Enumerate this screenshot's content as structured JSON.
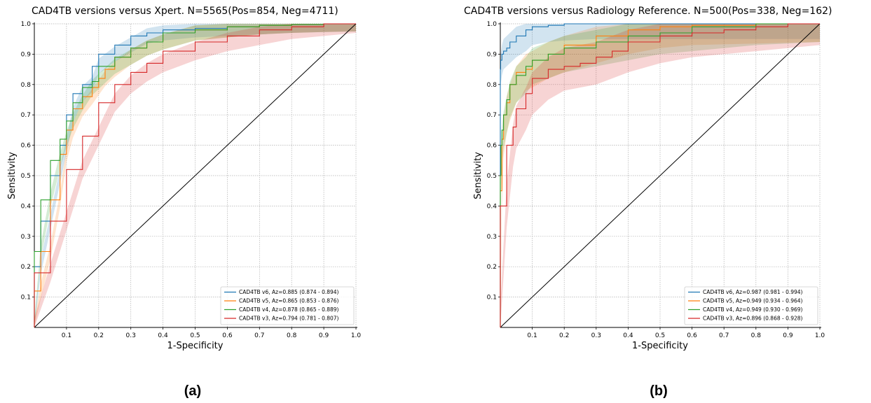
{
  "chart_data": [
    {
      "type": "line",
      "panel_label": "(a)",
      "title": "CAD4TB versions versus Xpert.  N=5565(Pos=854, Neg=4711)",
      "xlabel": "1-Specificity",
      "ylabel": "Sensitivity",
      "xlim": [
        0,
        1.0
      ],
      "ylim": [
        0,
        1.0
      ],
      "xticks": [
        "0.1",
        "0.2",
        "0.3",
        "0.4",
        "0.5",
        "0.6",
        "0.7",
        "0.8",
        "0.9",
        "1.0"
      ],
      "yticks": [
        "0.1",
        "0.2",
        "0.3",
        "0.4",
        "0.5",
        "0.6",
        "0.7",
        "0.8",
        "0.9",
        "1.0"
      ],
      "grid": true,
      "legend_position": "bottom-right",
      "diagonal": true,
      "series": [
        {
          "name": "CAD4TB v6, Az=0.885 (0.874 - 0.894)",
          "color": "#1f77b4",
          "band": 0.025,
          "x": [
            0,
            0.02,
            0.05,
            0.08,
            0.1,
            0.12,
            0.15,
            0.18,
            0.2,
            0.25,
            0.3,
            0.35,
            0.4,
            0.5,
            0.6,
            0.7,
            0.8,
            0.9,
            1.0
          ],
          "y": [
            0,
            0.2,
            0.35,
            0.5,
            0.6,
            0.7,
            0.77,
            0.8,
            0.86,
            0.9,
            0.93,
            0.96,
            0.97,
            0.98,
            0.985,
            0.99,
            0.995,
            0.998,
            1.0
          ]
        },
        {
          "name": "CAD4TB v5, Az=0.865 (0.853 - 0.876)",
          "color": "#ff7f0e",
          "band": 0.025,
          "x": [
            0,
            0.02,
            0.05,
            0.08,
            0.1,
            0.12,
            0.15,
            0.18,
            0.2,
            0.22,
            0.25,
            0.3,
            0.35,
            0.4,
            0.5,
            0.6,
            0.7,
            0.8,
            0.9,
            1.0
          ],
          "y": [
            0,
            0.12,
            0.25,
            0.42,
            0.57,
            0.65,
            0.72,
            0.76,
            0.79,
            0.82,
            0.85,
            0.89,
            0.92,
            0.94,
            0.97,
            0.98,
            0.99,
            0.995,
            0.998,
            1.0
          ]
        },
        {
          "name": "CAD4TB v4, Az=0.878 (0.865 - 0.889)",
          "color": "#2ca02c",
          "band": 0.025,
          "x": [
            0,
            0.02,
            0.05,
            0.08,
            0.1,
            0.12,
            0.15,
            0.18,
            0.2,
            0.25,
            0.3,
            0.35,
            0.4,
            0.5,
            0.6,
            0.7,
            0.8,
            0.9,
            1.0
          ],
          "y": [
            0,
            0.25,
            0.42,
            0.55,
            0.62,
            0.68,
            0.74,
            0.79,
            0.81,
            0.86,
            0.89,
            0.92,
            0.94,
            0.97,
            0.98,
            0.99,
            0.995,
            0.998,
            1.0
          ]
        },
        {
          "name": "CAD4TB v3, Az=0.794 (0.781 - 0.807)",
          "color": "#d62728",
          "band": 0.03,
          "x": [
            0,
            0.05,
            0.1,
            0.15,
            0.2,
            0.25,
            0.3,
            0.35,
            0.4,
            0.5,
            0.6,
            0.7,
            0.8,
            0.9,
            1.0
          ],
          "y": [
            0,
            0.18,
            0.35,
            0.52,
            0.63,
            0.74,
            0.8,
            0.84,
            0.87,
            0.91,
            0.94,
            0.96,
            0.98,
            0.99,
            1.0
          ]
        }
      ]
    },
    {
      "type": "line",
      "panel_label": "(b)",
      "title": "CAD4TB versions versus Radiology Reference.  N=500(Pos=338, Neg=162)",
      "xlabel": "1-Specificity",
      "ylabel": "Sensitivity",
      "xlim": [
        0,
        1.0
      ],
      "ylim": [
        0,
        1.0
      ],
      "xticks": [
        "0.1",
        "0.2",
        "0.3",
        "0.4",
        "0.5",
        "0.6",
        "0.7",
        "0.8",
        "0.9",
        "1.0"
      ],
      "yticks": [
        "0.1",
        "0.2",
        "0.3",
        "0.4",
        "0.5",
        "0.6",
        "0.7",
        "0.8",
        "0.9",
        "1.0"
      ],
      "grid": true,
      "legend_position": "bottom-right",
      "diagonal": true,
      "series": [
        {
          "name": "CAD4TB v6, Az=0.987 (0.981 - 0.994)",
          "color": "#1f77b4",
          "band": 0.05,
          "x": [
            0,
            0.001,
            0.005,
            0.01,
            0.02,
            0.03,
            0.05,
            0.08,
            0.1,
            0.15,
            0.2,
            0.3,
            0.4,
            0.6,
            0.8,
            1.0
          ],
          "y": [
            0,
            0.85,
            0.88,
            0.9,
            0.91,
            0.92,
            0.94,
            0.96,
            0.98,
            0.99,
            0.995,
            1.0,
            1.0,
            1.0,
            1.0,
            1.0
          ]
        },
        {
          "name": "CAD4TB v5, Az=0.949 (0.934 - 0.964)",
          "color": "#ff7f0e",
          "band": 0.06,
          "x": [
            0,
            0.005,
            0.01,
            0.02,
            0.03,
            0.05,
            0.08,
            0.1,
            0.15,
            0.2,
            0.3,
            0.4,
            0.5,
            0.6,
            0.8,
            1.0
          ],
          "y": [
            0,
            0.45,
            0.62,
            0.7,
            0.74,
            0.8,
            0.84,
            0.85,
            0.88,
            0.9,
            0.93,
            0.96,
            0.98,
            0.99,
            0.995,
            1.0
          ]
        },
        {
          "name": "CAD4TB v4, Az=0.949 (0.930 - 0.969)",
          "color": "#2ca02c",
          "band": 0.06,
          "x": [
            0,
            0.002,
            0.005,
            0.01,
            0.02,
            0.03,
            0.05,
            0.08,
            0.1,
            0.15,
            0.2,
            0.3,
            0.4,
            0.5,
            0.6,
            0.8,
            1.0
          ],
          "y": [
            0,
            0.5,
            0.6,
            0.65,
            0.7,
            0.75,
            0.8,
            0.83,
            0.86,
            0.88,
            0.9,
            0.92,
            0.94,
            0.96,
            0.97,
            0.99,
            1.0
          ]
        },
        {
          "name": "CAD4TB v3, Az=0.896 (0.868 - 0.928)",
          "color": "#d62728",
          "band": 0.07,
          "x": [
            0,
            0.02,
            0.04,
            0.05,
            0.08,
            0.1,
            0.15,
            0.2,
            0.25,
            0.3,
            0.35,
            0.4,
            0.5,
            0.6,
            0.7,
            0.8,
            0.9,
            1.0
          ],
          "y": [
            0,
            0.4,
            0.6,
            0.66,
            0.72,
            0.77,
            0.82,
            0.85,
            0.86,
            0.87,
            0.89,
            0.91,
            0.94,
            0.96,
            0.97,
            0.98,
            0.99,
            1.0
          ]
        }
      ]
    }
  ]
}
